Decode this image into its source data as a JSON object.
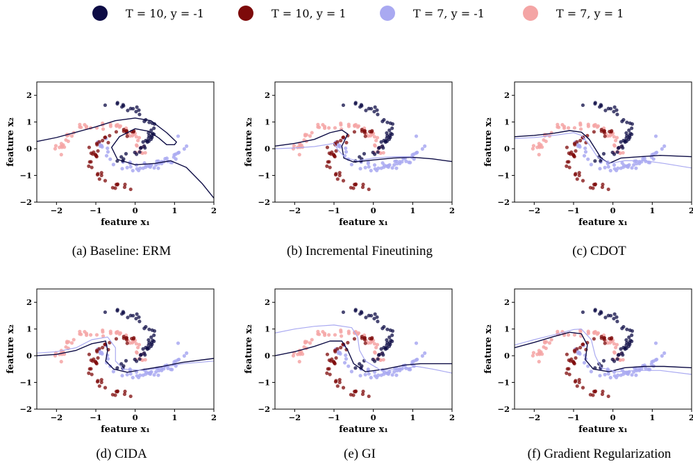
{
  "legend": [
    {
      "label": "T = 10, y = -1",
      "color": "#0d0c45"
    },
    {
      "label": "T = 10, y = 1",
      "color": "#7d0a0a"
    },
    {
      "label": "T = 7, y = -1",
      "color": "#a9a9f1"
    },
    {
      "label": "T = 7, y = 1",
      "color": "#f4a5a5"
    }
  ],
  "chart_data": [
    {
      "type": "scatter",
      "caption": "(a) Baseline: ERM",
      "xlabel": "feature x₁",
      "ylabel": "feature x₂",
      "xlim": [
        -2.5,
        2
      ],
      "ylim": [
        -2,
        2.5
      ],
      "xticks": [
        -2,
        -1,
        0,
        1,
        2
      ],
      "yticks": [
        -2,
        -1,
        0,
        1,
        2
      ],
      "boundaries": [
        {
          "series": "T = 10",
          "color": "#0d0c45",
          "points": [
            [
              -2.5,
              0.27
            ],
            [
              -2,
              0.42
            ],
            [
              -1.5,
              0.62
            ],
            [
              -1,
              0.82
            ],
            [
              -0.5,
              1.05
            ],
            [
              0,
              1.15
            ],
            [
              0.4,
              1.05
            ],
            [
              0.8,
              0.6
            ],
            [
              1.05,
              0.25
            ],
            [
              1.0,
              0.15
            ],
            [
              0.8,
              0.15
            ],
            [
              0.6,
              0.4
            ],
            [
              0.35,
              0.65
            ],
            [
              0,
              0.75
            ],
            [
              -0.4,
              0.45
            ],
            [
              -0.6,
              0.05
            ],
            [
              -0.45,
              -0.4
            ],
            [
              0,
              -0.6
            ],
            [
              0.5,
              -0.55
            ],
            [
              0.9,
              -0.45
            ],
            [
              1.3,
              -0.7
            ],
            [
              1.7,
              -1.3
            ],
            [
              2,
              -1.85
            ]
          ]
        }
      ]
    },
    {
      "type": "scatter",
      "caption": "(b) Incremental Fineutining",
      "xlabel": "feature x₁",
      "ylabel": "feature x₂",
      "xlim": [
        -2.5,
        2
      ],
      "ylim": [
        -2,
        2.5
      ],
      "xticks": [
        -2,
        -1,
        0,
        1,
        2
      ],
      "yticks": [
        -2,
        -1,
        0,
        1,
        2
      ],
      "boundaries": [
        {
          "series": "T = 10",
          "color": "#0d0c45",
          "points": [
            [
              -2.5,
              0.1
            ],
            [
              -2,
              0.2
            ],
            [
              -1.5,
              0.35
            ],
            [
              -1.1,
              0.6
            ],
            [
              -0.8,
              0.7
            ],
            [
              -0.65,
              0.55
            ],
            [
              -0.8,
              0.1
            ],
            [
              -0.75,
              -0.35
            ],
            [
              -0.5,
              -0.5
            ],
            [
              0,
              -0.42
            ],
            [
              0.5,
              -0.35
            ],
            [
              1,
              -0.32
            ],
            [
              1.5,
              -0.38
            ],
            [
              2,
              -0.48
            ]
          ]
        },
        {
          "series": "T = 7",
          "color": "#a9a9f1",
          "points": [
            [
              -2.5,
              0.0
            ],
            [
              -2,
              0.03
            ],
            [
              -1.5,
              0.08
            ],
            [
              -1.2,
              0.15
            ],
            [
              -1,
              0.2
            ],
            [
              -0.9,
              -0.05
            ],
            [
              -0.7,
              -0.35
            ],
            [
              -0.4,
              -0.45
            ],
            [
              0,
              -0.35
            ],
            [
              0.5,
              -0.3
            ],
            [
              1,
              -0.3
            ]
          ]
        }
      ]
    },
    {
      "type": "scatter",
      "caption": "(c) CDOT",
      "xlabel": "feature x₁",
      "ylabel": "feature x₂",
      "xlim": [
        -2.5,
        2
      ],
      "ylim": [
        -2,
        2.5
      ],
      "xticks": [
        -2,
        -1,
        0,
        1,
        2
      ],
      "yticks": [
        -2,
        -1,
        0,
        1,
        2
      ],
      "boundaries": [
        {
          "series": "T = 10",
          "color": "#0d0c45",
          "points": [
            [
              -2.5,
              0.45
            ],
            [
              -2,
              0.5
            ],
            [
              -1.5,
              0.58
            ],
            [
              -1.1,
              0.68
            ],
            [
              -0.8,
              0.62
            ],
            [
              -0.6,
              0.35
            ],
            [
              -0.45,
              0.0
            ],
            [
              -0.3,
              -0.35
            ],
            [
              -0.1,
              -0.55
            ],
            [
              0.2,
              -0.35
            ],
            [
              0.7,
              -0.3
            ],
            [
              1.2,
              -0.25
            ],
            [
              2,
              -0.3
            ]
          ]
        },
        {
          "series": "T = 7",
          "color": "#a9a9f1",
          "points": [
            [
              -2.5,
              0.38
            ],
            [
              -2,
              0.42
            ],
            [
              -1.5,
              0.5
            ],
            [
              -1,
              0.6
            ],
            [
              -0.8,
              0.5
            ],
            [
              -0.6,
              0.15
            ],
            [
              -0.4,
              -0.3
            ],
            [
              -0.1,
              -0.55
            ],
            [
              0.3,
              -0.45
            ],
            [
              0.8,
              -0.45
            ],
            [
              1.3,
              -0.55
            ],
            [
              2,
              -0.72
            ]
          ]
        }
      ]
    },
    {
      "type": "scatter",
      "caption": "(d) CIDA",
      "xlabel": "feature x₁",
      "ylabel": "feature x₂",
      "xlim": [
        -2.5,
        2
      ],
      "ylim": [
        -2,
        2.5
      ],
      "xticks": [
        -2,
        -1,
        0,
        1,
        2
      ],
      "yticks": [
        -2,
        -1,
        0,
        1,
        2
      ],
      "boundaries": [
        {
          "series": "T = 10",
          "color": "#0d0c45",
          "points": [
            [
              -2.5,
              0.0
            ],
            [
              -2,
              0.05
            ],
            [
              -1.5,
              0.2
            ],
            [
              -1.1,
              0.45
            ],
            [
              -0.75,
              0.55
            ],
            [
              -0.7,
              0.2
            ],
            [
              -0.75,
              -0.2
            ],
            [
              -0.55,
              -0.5
            ],
            [
              -0.2,
              -0.62
            ],
            [
              0.2,
              -0.52
            ],
            [
              0.7,
              -0.4
            ],
            [
              1.2,
              -0.25
            ],
            [
              2,
              -0.1
            ]
          ]
        },
        {
          "series": "T = 7",
          "color": "#a9a9f1",
          "points": [
            [
              -2.5,
              0.1
            ],
            [
              -2,
              0.15
            ],
            [
              -1.5,
              0.3
            ],
            [
              -1.1,
              0.6
            ],
            [
              -0.7,
              0.7
            ],
            [
              -0.5,
              0.3
            ],
            [
              -0.5,
              -0.2
            ],
            [
              -0.3,
              -0.5
            ],
            [
              0.2,
              -0.55
            ],
            [
              0.7,
              -0.45
            ],
            [
              1.2,
              -0.3
            ],
            [
              2,
              -0.2
            ]
          ]
        }
      ]
    },
    {
      "type": "scatter",
      "caption": "(e) GI",
      "xlabel": "feature x₁",
      "ylabel": "feature x₂",
      "xlim": [
        -2.5,
        2
      ],
      "ylim": [
        -2,
        2.5
      ],
      "xticks": [
        -2,
        -1,
        0,
        1,
        2
      ],
      "yticks": [
        -2,
        -1,
        0,
        1,
        2
      ],
      "boundaries": [
        {
          "series": "T = 10",
          "color": "#0d0c45",
          "points": [
            [
              -2.5,
              0.0
            ],
            [
              -2,
              0.15
            ],
            [
              -1.5,
              0.35
            ],
            [
              -1.1,
              0.55
            ],
            [
              -0.8,
              0.55
            ],
            [
              -0.65,
              0.2
            ],
            [
              -0.5,
              -0.3
            ],
            [
              -0.2,
              -0.6
            ],
            [
              0.3,
              -0.5
            ],
            [
              0.8,
              -0.35
            ],
            [
              1.2,
              -0.3
            ],
            [
              2,
              -0.3
            ]
          ]
        },
        {
          "series": "T = 7",
          "color": "#a9a9f1",
          "points": [
            [
              -2.5,
              0.85
            ],
            [
              -2,
              1.0
            ],
            [
              -1.5,
              1.1
            ],
            [
              -1,
              1.15
            ],
            [
              -0.55,
              1.05
            ],
            [
              -0.4,
              0.7
            ],
            [
              -0.35,
              0.2
            ],
            [
              -0.2,
              -0.2
            ],
            [
              0.2,
              -0.55
            ],
            [
              0.7,
              -0.5
            ],
            [
              1.1,
              -0.4
            ],
            [
              1.5,
              -0.5
            ],
            [
              2,
              -0.65
            ]
          ]
        }
      ]
    },
    {
      "type": "scatter",
      "caption": "(f) Gradient Regularization",
      "xlabel": "feature x₁",
      "ylabel": "feature x₂",
      "xlim": [
        -2.5,
        2
      ],
      "ylim": [
        -2,
        2.5
      ],
      "xticks": [
        -2,
        -1,
        0,
        1,
        2
      ],
      "yticks": [
        -2,
        -1,
        0,
        1,
        2
      ],
      "boundaries": [
        {
          "series": "T = 10",
          "color": "#0d0c45",
          "points": [
            [
              -2.5,
              0.3
            ],
            [
              -2,
              0.5
            ],
            [
              -1.5,
              0.72
            ],
            [
              -1.1,
              0.88
            ],
            [
              -0.8,
              0.82
            ],
            [
              -0.65,
              0.4
            ],
            [
              -0.7,
              -0.15
            ],
            [
              -0.5,
              -0.5
            ],
            [
              -0.1,
              -0.6
            ],
            [
              0.3,
              -0.45
            ],
            [
              0.8,
              -0.4
            ],
            [
              1.3,
              -0.4
            ],
            [
              2,
              -0.45
            ]
          ]
        },
        {
          "series": "T = 7",
          "color": "#a9a9f1",
          "points": [
            [
              -2.5,
              0.4
            ],
            [
              -2,
              0.6
            ],
            [
              -1.5,
              0.78
            ],
            [
              -1,
              0.98
            ],
            [
              -0.8,
              1.0
            ],
            [
              -0.55,
              0.6
            ],
            [
              -0.45,
              0.0
            ],
            [
              -0.3,
              -0.45
            ],
            [
              0.1,
              -0.6
            ],
            [
              0.6,
              -0.55
            ],
            [
              1.2,
              -0.55
            ],
            [
              2,
              -0.7
            ]
          ]
        }
      ]
    }
  ]
}
